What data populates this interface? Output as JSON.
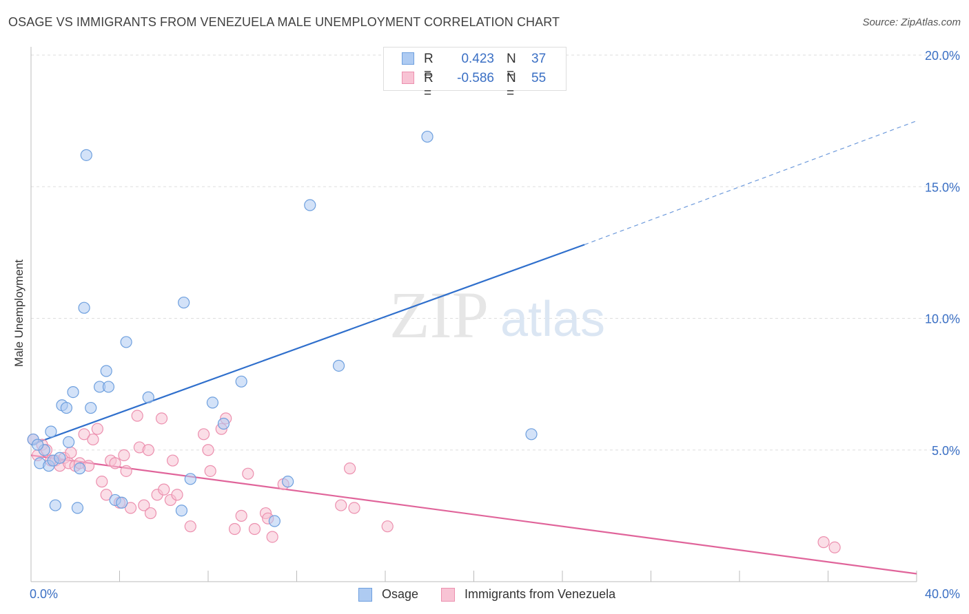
{
  "header": {
    "title": "OSAGE VS IMMIGRANTS FROM VENEZUELA MALE UNEMPLOYMENT CORRELATION CHART",
    "source": "Source: ZipAtlas.com"
  },
  "watermark": {
    "part1": "ZIP",
    "part2": "atlas"
  },
  "stats": [
    {
      "r_label": "R =",
      "r_value": "0.423",
      "n_label": "N =",
      "n_value": "37"
    },
    {
      "r_label": "R =",
      "r_value": "-0.586",
      "n_label": "N =",
      "n_value": "55"
    }
  ],
  "legend": [
    {
      "label": "Osage"
    },
    {
      "label": "Immigrants from Venezuela"
    }
  ],
  "colors": {
    "osage_fill": "#aecbf2",
    "osage_stroke": "#6d9fde",
    "osage_line": "#2f6fcc",
    "venezuela_fill": "#f8c3d4",
    "venezuela_stroke": "#ec8fae",
    "venezuela_line": "#e0649a",
    "tick_label": "#3a6fc4",
    "grid": "#dddddd"
  },
  "chart_data": {
    "type": "scatter",
    "title": "OSAGE VS IMMIGRANTS FROM VENEZUELA MALE UNEMPLOYMENT CORRELATION CHART",
    "xlabel": "",
    "ylabel": "Male Unemployment",
    "xlim": [
      0,
      40
    ],
    "ylim": [
      0,
      20
    ],
    "x_tick_labels": [
      "0.0%",
      "40.0%"
    ],
    "y_ticks": [
      5,
      10,
      15,
      20
    ],
    "y_tick_labels": [
      "5.0%",
      "10.0%",
      "15.0%",
      "20.0%"
    ],
    "grid": "horizontal dashed",
    "series": [
      {
        "name": "Osage",
        "r": 0.423,
        "n": 37,
        "points": [
          [
            0.1,
            5.4
          ],
          [
            0.4,
            4.5
          ],
          [
            0.6,
            5.0
          ],
          [
            0.8,
            4.4
          ],
          [
            0.9,
            5.7
          ],
          [
            1.0,
            4.6
          ],
          [
            1.1,
            2.9
          ],
          [
            1.3,
            4.7
          ],
          [
            1.4,
            6.7
          ],
          [
            1.6,
            6.6
          ],
          [
            1.7,
            5.3
          ],
          [
            1.9,
            7.2
          ],
          [
            2.1,
            2.8
          ],
          [
            2.2,
            4.3
          ],
          [
            2.4,
            10.4
          ],
          [
            2.5,
            16.2
          ],
          [
            2.7,
            6.6
          ],
          [
            3.1,
            7.4
          ],
          [
            3.4,
            8.0
          ],
          [
            3.5,
            7.4
          ],
          [
            3.8,
            3.1
          ],
          [
            4.1,
            3.0
          ],
          [
            4.3,
            9.1
          ],
          [
            5.3,
            7.0
          ],
          [
            6.8,
            2.7
          ],
          [
            6.9,
            10.6
          ],
          [
            7.2,
            3.9
          ],
          [
            8.2,
            6.8
          ],
          [
            8.7,
            6.0
          ],
          [
            9.5,
            7.6
          ],
          [
            11.0,
            2.3
          ],
          [
            11.6,
            3.8
          ],
          [
            12.6,
            14.3
          ],
          [
            13.9,
            8.2
          ],
          [
            17.9,
            16.9
          ],
          [
            22.6,
            5.6
          ],
          [
            0.3,
            5.2
          ]
        ],
        "trend": {
          "x0": 0,
          "y0": 5.2,
          "x1": 25,
          "y1": 12.8,
          "dashed_to_x": 40,
          "dashed_to_y": 17.5
        }
      },
      {
        "name": "Immigrants from Venezuela",
        "r": -0.586,
        "n": 55,
        "points": [
          [
            0.1,
            5.4
          ],
          [
            0.3,
            4.8
          ],
          [
            0.5,
            5.2
          ],
          [
            0.7,
            5.0
          ],
          [
            0.9,
            4.6
          ],
          [
            1.1,
            4.6
          ],
          [
            1.3,
            4.4
          ],
          [
            1.5,
            4.7
          ],
          [
            1.7,
            4.5
          ],
          [
            1.8,
            4.9
          ],
          [
            2.0,
            4.4
          ],
          [
            2.2,
            4.5
          ],
          [
            2.4,
            5.6
          ],
          [
            2.6,
            4.4
          ],
          [
            2.8,
            5.4
          ],
          [
            3.0,
            5.8
          ],
          [
            3.2,
            3.8
          ],
          [
            3.4,
            3.3
          ],
          [
            3.6,
            4.6
          ],
          [
            3.8,
            4.5
          ],
          [
            4.0,
            3.0
          ],
          [
            4.2,
            4.8
          ],
          [
            4.3,
            4.2
          ],
          [
            4.5,
            2.8
          ],
          [
            4.8,
            6.3
          ],
          [
            4.9,
            5.1
          ],
          [
            5.1,
            2.9
          ],
          [
            5.3,
            5.0
          ],
          [
            5.4,
            2.6
          ],
          [
            5.7,
            3.3
          ],
          [
            5.9,
            6.2
          ],
          [
            6.0,
            3.5
          ],
          [
            6.3,
            3.1
          ],
          [
            6.4,
            4.6
          ],
          [
            6.6,
            3.3
          ],
          [
            7.2,
            2.1
          ],
          [
            7.8,
            5.6
          ],
          [
            8.0,
            5.0
          ],
          [
            8.1,
            4.2
          ],
          [
            8.6,
            5.8
          ],
          [
            8.8,
            6.2
          ],
          [
            9.2,
            2.0
          ],
          [
            9.5,
            2.5
          ],
          [
            9.8,
            4.1
          ],
          [
            10.1,
            2.0
          ],
          [
            10.6,
            2.6
          ],
          [
            10.7,
            2.4
          ],
          [
            10.9,
            1.7
          ],
          [
            11.4,
            3.7
          ],
          [
            14.0,
            2.9
          ],
          [
            14.4,
            4.3
          ],
          [
            14.6,
            2.8
          ],
          [
            16.1,
            2.1
          ],
          [
            35.8,
            1.5
          ],
          [
            36.3,
            1.3
          ]
        ],
        "trend": {
          "x0": 0,
          "y0": 4.8,
          "x1": 40,
          "y1": 0.3
        }
      }
    ]
  }
}
